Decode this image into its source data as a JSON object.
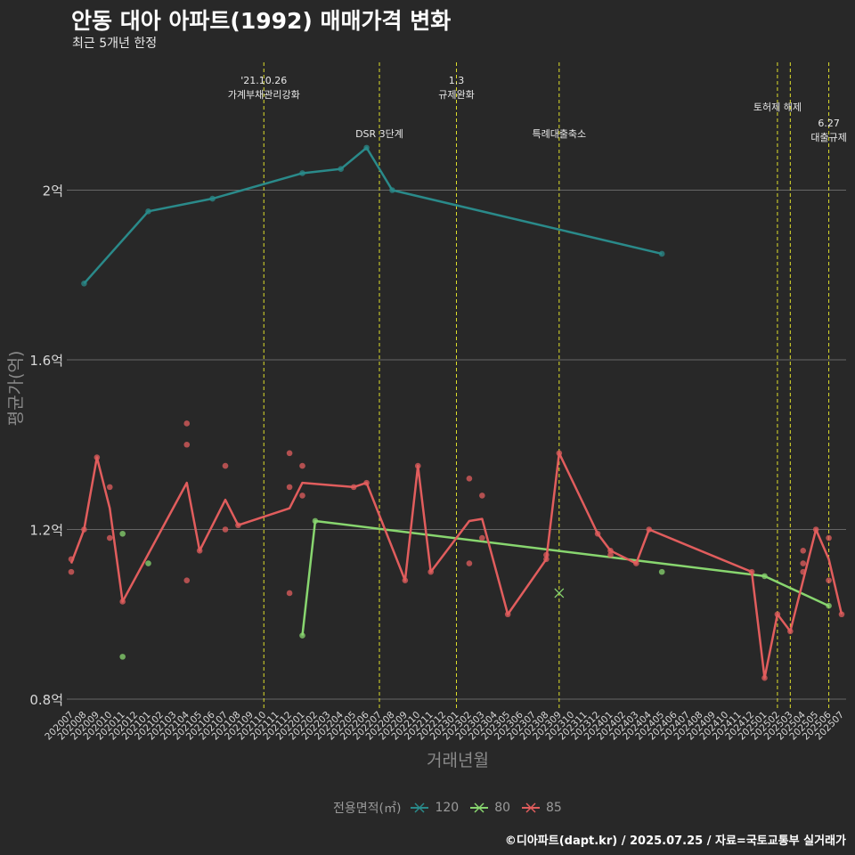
{
  "title": "안동 대아 아파트(1992) 매매가격 변화",
  "subtitle": "최근 5개년 한정",
  "caption": "©디아파트(dapt.kr) / 2025.07.25 / 자료=국토교통부 실거래가",
  "legend": {
    "title": "전용면적(㎡)",
    "items": [
      {
        "label": "120",
        "color": "#2a8a8a"
      },
      {
        "label": "80",
        "color": "#88d66f"
      },
      {
        "label": "85",
        "color": "#e15d5d"
      }
    ]
  },
  "chart_data": {
    "type": "line",
    "xlabel": "거래년월",
    "ylabel": "평균가(억)",
    "ylim": [
      0.8,
      2.15
    ],
    "yticks": [
      {
        "value": 0.8,
        "label": "0.8억"
      },
      {
        "value": 1.2,
        "label": "1.2억"
      },
      {
        "value": 1.6,
        "label": "1.6억"
      },
      {
        "value": 2.0,
        "label": "2억"
      }
    ],
    "grid": true,
    "legend_position": "bottom",
    "x_categories": [
      "202007",
      "202008",
      "202009",
      "202010",
      "202011",
      "202012",
      "202101",
      "202102",
      "202103",
      "202104",
      "202105",
      "202106",
      "202107",
      "202108",
      "202109",
      "202110",
      "202111",
      "202112",
      "202201",
      "202202",
      "202203",
      "202204",
      "202205",
      "202206",
      "202207",
      "202208",
      "202209",
      "202210",
      "202211",
      "202212",
      "202301",
      "202302",
      "202303",
      "202304",
      "202305",
      "202306",
      "202307",
      "202308",
      "202309",
      "202310",
      "202311",
      "202312",
      "202401",
      "202402",
      "202403",
      "202404",
      "202405",
      "202406",
      "202407",
      "202408",
      "202409",
      "202410",
      "202411",
      "202412",
      "202501",
      "202502",
      "202503",
      "202504",
      "202505",
      "202506",
      "202507"
    ],
    "events": [
      {
        "x": "202110",
        "lines": [
          "'21.10.26",
          "가계부채관리강화"
        ],
        "tier": 0
      },
      {
        "x": "202207",
        "lines": [
          "DSR 3단계"
        ],
        "tier": 2
      },
      {
        "x": "202301",
        "lines": [
          "1.3",
          "규제완화"
        ],
        "tier": 0
      },
      {
        "x": "202309",
        "lines": [
          "특례대출축소"
        ],
        "tier": 2
      },
      {
        "x": "202502",
        "lines": [
          "토허제 해제"
        ],
        "tier": 1
      },
      {
        "x": "202503",
        "lines": [],
        "tier": 1
      },
      {
        "x": "202506",
        "lines": [
          "6.27",
          "대출규제"
        ],
        "tier": 1.6
      }
    ],
    "series": [
      {
        "name": "120",
        "color": "#2a8a8a",
        "line": [
          [
            "202008",
            1.78
          ],
          [
            "202101",
            1.95
          ],
          [
            "202106",
            1.98
          ],
          [
            "202201",
            2.04
          ],
          [
            "202204",
            2.05
          ],
          [
            "202206",
            2.1
          ],
          [
            "202208",
            2.0
          ],
          [
            "202405",
            1.85
          ]
        ],
        "points": [
          [
            "202008",
            1.78
          ],
          [
            "202101",
            1.95
          ],
          [
            "202106",
            1.98
          ],
          [
            "202201",
            2.04
          ],
          [
            "202204",
            2.05
          ],
          [
            "202206",
            2.1
          ],
          [
            "202208",
            2.0
          ],
          [
            "202405",
            1.85
          ]
        ],
        "marks": [
          [
            "202309",
            1.05
          ]
        ]
      },
      {
        "name": "80",
        "color": "#88d66f",
        "line": [
          [
            "202201",
            0.95
          ],
          [
            "202202",
            1.22
          ],
          [
            "202501",
            1.09
          ],
          [
            "202506",
            1.02
          ]
        ],
        "points": [
          [
            "202011",
            1.19
          ],
          [
            "202011",
            0.9
          ],
          [
            "202101",
            1.12
          ],
          [
            "202201",
            0.95
          ],
          [
            "202202",
            1.22
          ],
          [
            "202405",
            1.1
          ],
          [
            "202501",
            1.09
          ],
          [
            "202506",
            1.02
          ]
        ],
        "marks": []
      },
      {
        "name": "85",
        "color": "#e15d5d",
        "line": [
          [
            "202007",
            1.12
          ],
          [
            "202008",
            1.2
          ],
          [
            "202009",
            1.37
          ],
          [
            "202010",
            1.25
          ],
          [
            "202011",
            1.03
          ],
          [
            "202104",
            1.31
          ],
          [
            "202105",
            1.15
          ],
          [
            "202107",
            1.27
          ],
          [
            "202108",
            1.21
          ],
          [
            "202112",
            1.25
          ],
          [
            "202201",
            1.31
          ],
          [
            "202205",
            1.3
          ],
          [
            "202206",
            1.31
          ],
          [
            "202209",
            1.08
          ],
          [
            "202210",
            1.35
          ],
          [
            "202211",
            1.1
          ],
          [
            "202302",
            1.22
          ],
          [
            "202303",
            1.225
          ],
          [
            "202305",
            1.0
          ],
          [
            "202308",
            1.13
          ],
          [
            "202309",
            1.38
          ],
          [
            "202312",
            1.19
          ],
          [
            "202401",
            1.15
          ],
          [
            "202403",
            1.12
          ],
          [
            "202404",
            1.2
          ],
          [
            "202412",
            1.1
          ],
          [
            "202501",
            0.85
          ],
          [
            "202502",
            1.0
          ],
          [
            "202503",
            0.96
          ],
          [
            "202505",
            1.2
          ],
          [
            "202506",
            1.13
          ],
          [
            "202507",
            1.0
          ]
        ],
        "points": [
          [
            "202007",
            1.13
          ],
          [
            "202007",
            1.1
          ],
          [
            "202008",
            1.2
          ],
          [
            "202009",
            1.37
          ],
          [
            "202010",
            1.3
          ],
          [
            "202010",
            1.18
          ],
          [
            "202011",
            1.03
          ],
          [
            "202104",
            1.45
          ],
          [
            "202104",
            1.4
          ],
          [
            "202104",
            1.08
          ],
          [
            "202105",
            1.15
          ],
          [
            "202107",
            1.35
          ],
          [
            "202107",
            1.2
          ],
          [
            "202108",
            1.21
          ],
          [
            "202112",
            1.38
          ],
          [
            "202112",
            1.3
          ],
          [
            "202112",
            1.05
          ],
          [
            "202201",
            1.35
          ],
          [
            "202201",
            1.28
          ],
          [
            "202205",
            1.3
          ],
          [
            "202206",
            1.31
          ],
          [
            "202209",
            1.08
          ],
          [
            "202210",
            1.35
          ],
          [
            "202211",
            1.1
          ],
          [
            "202302",
            1.32
          ],
          [
            "202302",
            1.12
          ],
          [
            "202303",
            1.28
          ],
          [
            "202303",
            1.18
          ],
          [
            "202305",
            1.0
          ],
          [
            "202308",
            1.14
          ],
          [
            "202308",
            1.13
          ],
          [
            "202309",
            1.38
          ],
          [
            "202312",
            1.19
          ],
          [
            "202401",
            1.15
          ],
          [
            "202401",
            1.14
          ],
          [
            "202403",
            1.12
          ],
          [
            "202404",
            1.2
          ],
          [
            "202412",
            1.1
          ],
          [
            "202501",
            0.85
          ],
          [
            "202502",
            1.0
          ],
          [
            "202503",
            0.96
          ],
          [
            "202504",
            1.15
          ],
          [
            "202504",
            1.12
          ],
          [
            "202504",
            1.1
          ],
          [
            "202505",
            1.2
          ],
          [
            "202506",
            1.18
          ],
          [
            "202506",
            1.08
          ],
          [
            "202507",
            1.0
          ]
        ],
        "marks": []
      }
    ]
  }
}
